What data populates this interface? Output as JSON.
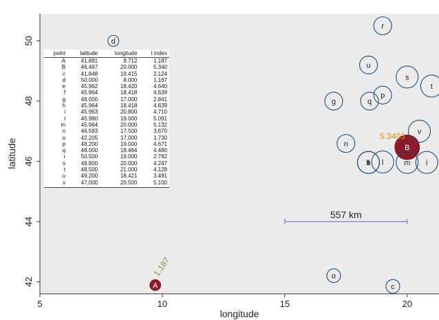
{
  "chart_data": {
    "type": "scatter",
    "xlabel": "longitude",
    "ylabel": "latitude",
    "xlim": [
      5,
      21.3
    ],
    "ylim": [
      41.6,
      50.9
    ],
    "xticks": [
      "5",
      "10",
      "15",
      "20"
    ],
    "yticks": [
      "42",
      "44",
      "46",
      "48",
      "50"
    ],
    "points": [
      {
        "label": "A",
        "x": 9.712,
        "y": 41.891,
        "highlight": true,
        "annotation": "1.187"
      },
      {
        "label": "B",
        "x": 20.0,
        "y": 46.467,
        "highlight": true,
        "annotation": "5.3403"
      },
      {
        "label": "c",
        "x": 19.415,
        "y": 41.848
      },
      {
        "label": "d",
        "x": 8.0,
        "y": 50.0
      },
      {
        "label": "e",
        "x": 18.42,
        "y": 45.962
      },
      {
        "label": "f",
        "x": 18.418,
        "y": 45.964
      },
      {
        "label": "g",
        "x": 17.0,
        "y": 48.0
      },
      {
        "label": "h",
        "x": 18.418,
        "y": 45.964
      },
      {
        "label": "i",
        "x": 20.8,
        "y": 45.963
      },
      {
        "label": "l",
        "x": 19.0,
        "y": 45.98
      },
      {
        "label": "m",
        "x": 20.0,
        "y": 45.964
      },
      {
        "label": "n",
        "x": 17.5,
        "y": 46.593
      },
      {
        "label": "o",
        "x": 17.0,
        "y": 42.205
      },
      {
        "label": "p",
        "x": 19.0,
        "y": 48.2
      },
      {
        "label": "q",
        "x": 18.464,
        "y": 48.0
      },
      {
        "label": "r",
        "x": 19.0,
        "y": 50.5
      },
      {
        "label": "s",
        "x": 20.0,
        "y": 48.8
      },
      {
        "label": "t",
        "x": 21.0,
        "y": 48.5
      },
      {
        "label": "u",
        "x": 18.421,
        "y": 49.2
      },
      {
        "label": "v",
        "x": 20.5,
        "y": 47.0
      }
    ],
    "scale_bar": {
      "label": "557 km",
      "x_start": 15,
      "x_end": 20,
      "y": 44
    }
  },
  "table": {
    "headers": [
      "point",
      "latitude",
      "longitude",
      "I index"
    ],
    "rows": [
      [
        "A",
        "41.891",
        "9.712",
        "1.187"
      ],
      [
        "B",
        "46.467",
        "20.000",
        "5.340"
      ],
      [
        "c",
        "41.848",
        "19.415",
        "2.124"
      ],
      [
        "d",
        "50.000",
        "8.000",
        "1.167"
      ],
      [
        "e",
        "45.962",
        "18.420",
        "4.640"
      ],
      [
        "f",
        "45.964",
        "18.418",
        "4.639"
      ],
      [
        "g",
        "48.000",
        "17.000",
        "2.841"
      ],
      [
        "h",
        "45.964",
        "18.418",
        "4.639"
      ],
      [
        "i",
        "45.963",
        "20.800",
        "4.710"
      ],
      [
        "l",
        "45.980",
        "19.000",
        "5.091"
      ],
      [
        "m",
        "45.964",
        "20.000",
        "5.132"
      ],
      [
        "n",
        "46.593",
        "17.500",
        "3.670"
      ],
      [
        "o",
        "42.205",
        "17.000",
        "1.730"
      ],
      [
        "p",
        "48.200",
        "19.000",
        "4.671"
      ],
      [
        "q",
        "48.000",
        "18.464",
        "4.480"
      ],
      [
        "r",
        "50.500",
        "19.000",
        "2.782"
      ],
      [
        "s",
        "48.800",
        "20.000",
        "4.247"
      ],
      [
        "t",
        "48.500",
        "21.000",
        "4.128"
      ],
      [
        "u",
        "49.200",
        "18.421",
        "3.491"
      ],
      [
        "v",
        "47.000",
        "20.500",
        "5.100"
      ]
    ]
  },
  "colors": {
    "plot_background": "#ebebeb",
    "circle_stroke": "#1f4e79",
    "highlight_fill": "#8b1a2b",
    "scale_bar": "#7b7bd6",
    "annotation_A": "#7d8f3a",
    "annotation_B": "#e08a1e"
  }
}
